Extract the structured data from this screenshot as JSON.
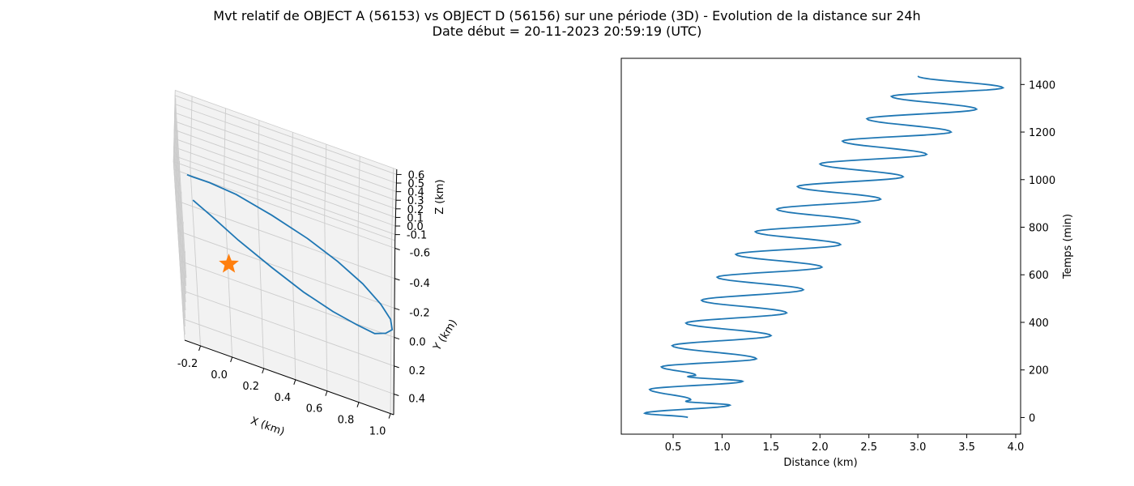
{
  "figure": {
    "title_line1": "Mvt relatif de OBJECT A (56153) vs OBJECT D (56156) sur une période (3D) - Evolution de la distance sur 24h",
    "title_line2": "Date début = 20-11-2023 20:59:19 (UTC)"
  },
  "colors": {
    "series": "#1f77b4",
    "marker": "#ff7f0e",
    "pane": "#f2f2f2",
    "grid": "#cccccc"
  },
  "chart_data": [
    {
      "type": "line3d",
      "title": "",
      "xlabel": "X (km)",
      "ylabel": "Y (km)",
      "zlabel": "Z (km)",
      "xlim": [
        -0.3,
        1.02
      ],
      "ylim": [
        -0.65,
        0.55
      ],
      "zlim": [
        -0.17,
        0.66
      ],
      "x_ticks": [
        "-0.2",
        "0.0",
        "0.2",
        "0.4",
        "0.6",
        "0.8",
        "1.0"
      ],
      "y_ticks": [
        "-0.6",
        "-0.4",
        "-0.2",
        "0.0",
        "0.2",
        "0.4"
      ],
      "z_ticks": [
        "-0.1",
        "0.0",
        "0.1",
        "0.2",
        "0.3",
        "0.4",
        "0.5",
        "0.6"
      ],
      "grid": true,
      "marker": {
        "shape": "star",
        "x": 0.0,
        "y": 0.0,
        "z": 0.0
      },
      "series": [
        {
          "x": [
            -0.23,
            -0.19,
            -0.09,
            0.07,
            0.28,
            0.49,
            0.67,
            0.82,
            0.93,
            0.99,
            1.0,
            0.96,
            0.89,
            0.78,
            0.63,
            0.45,
            0.26,
            0.06,
            -0.1,
            -0.2
          ],
          "y": [
            -0.5,
            -0.55,
            -0.58,
            -0.57,
            -0.5,
            -0.38,
            -0.23,
            -0.06,
            0.11,
            0.26,
            0.38,
            0.45,
            0.48,
            0.44,
            0.36,
            0.24,
            0.08,
            -0.1,
            -0.27,
            -0.38
          ],
          "z": [
            0.0,
            -0.09,
            -0.14,
            -0.15,
            -0.12,
            -0.03,
            0.09,
            0.23,
            0.36,
            0.48,
            0.57,
            0.62,
            0.62,
            0.58,
            0.5,
            0.4,
            0.28,
            0.15,
            0.03,
            -0.06
          ]
        }
      ]
    },
    {
      "type": "line",
      "title": "",
      "xlabel": "Distance (km)",
      "ylabel": "Temps (min)",
      "xlim": [
        -0.03,
        4.05
      ],
      "ylim": [
        -70,
        1510
      ],
      "x_ticks": [
        0.5,
        1.0,
        1.5,
        2.0,
        2.5,
        3.0,
        3.5,
        4.0
      ],
      "x_tick_labels": [
        "0.5",
        "1.0",
        "1.5",
        "2.0",
        "2.5",
        "3.0",
        "3.5",
        "4.0"
      ],
      "y_ticks": [
        0,
        200,
        400,
        600,
        800,
        1000,
        1200,
        1400
      ],
      "y_tick_labels": [
        "0",
        "200",
        "400",
        "600",
        "800",
        "1000",
        "1200",
        "1400"
      ],
      "y_axis_side": "right",
      "grid": false,
      "series": [
        {
          "x": [
            0.65,
            0.21,
            1.08,
            0.63,
            0.68,
            0.26,
            1.21,
            0.65,
            0.73,
            0.38,
            1.35,
            0.49,
            1.5,
            0.63,
            1.66,
            0.79,
            1.83,
            0.95,
            2.02,
            1.14,
            2.21,
            1.34,
            2.41,
            1.56,
            2.62,
            1.77,
            2.85,
            2.0,
            3.09,
            2.23,
            3.34,
            2.48,
            3.6,
            2.73,
            3.87,
            3.0
          ],
          "y": [
            0,
            18,
            52,
            68,
            75,
            118,
            152,
            172,
            178,
            213,
            247,
            302,
            344,
            397,
            440,
            493,
            537,
            590,
            632,
            686,
            727,
            781,
            822,
            876,
            918,
            971,
            1012,
            1066,
            1106,
            1162,
            1200,
            1256,
            1296,
            1350,
            1386,
            1435
          ]
        }
      ]
    }
  ]
}
